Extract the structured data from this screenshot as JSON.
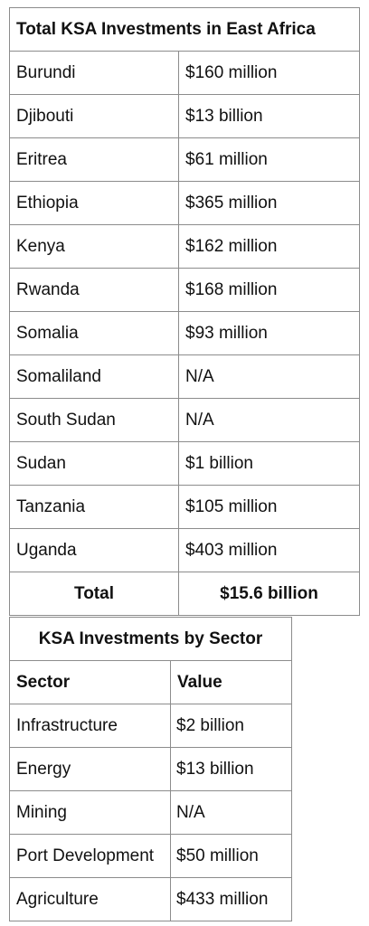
{
  "country_table": {
    "title": "Total KSA Investments in East Africa",
    "rows": [
      {
        "country": "Burundi",
        "value": "$160 million"
      },
      {
        "country": "Djibouti",
        "value": "$13 billion"
      },
      {
        "country": "Eritrea",
        "value": "$61 million"
      },
      {
        "country": "Ethiopia",
        "value": "$365 million"
      },
      {
        "country": "Kenya",
        "value": "$162 million"
      },
      {
        "country": "Rwanda",
        "value": "$168 million"
      },
      {
        "country": "Somalia",
        "value": "$93 million"
      },
      {
        "country": "Somaliland",
        "value": "N/A"
      },
      {
        "country": "South Sudan",
        "value": "N/A"
      },
      {
        "country": "Sudan",
        "value": "$1 billion"
      },
      {
        "country": "Tanzania",
        "value": "$105 million"
      },
      {
        "country": "Uganda",
        "value": "$403 million"
      }
    ],
    "total_label": "Total",
    "total_value": "$15.6 billion"
  },
  "sector_table": {
    "title": "KSA Investments by Sector",
    "header_sector": "Sector",
    "header_value": "Value",
    "rows": [
      {
        "sector": "Infrastructure",
        "value": "$2 billion"
      },
      {
        "sector": "Energy",
        "value": "$13 billion"
      },
      {
        "sector": "Mining",
        "value": "N/A"
      },
      {
        "sector": "Port Development",
        "value": "$50 million"
      },
      {
        "sector": "Agriculture",
        "value": "$433 million"
      }
    ]
  }
}
